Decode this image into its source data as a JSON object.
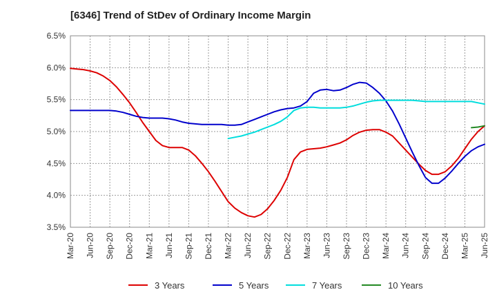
{
  "chart_data": {
    "type": "line",
    "title": "[6346]  Trend of StDev of Ordinary Income Margin",
    "xlabel": "",
    "ylabel": "",
    "y_tick_labels": [
      "3.5%",
      "4.0%",
      "4.5%",
      "5.0%",
      "5.5%",
      "6.0%",
      "6.5%"
    ],
    "x_tick_labels": [
      "Mar-20",
      "Jun-20",
      "Sep-20",
      "Dec-20",
      "Mar-21",
      "Jun-21",
      "Sep-21",
      "Dec-21",
      "Mar-22",
      "Jun-22",
      "Sep-22",
      "Dec-22",
      "Mar-23",
      "Jun-23",
      "Sep-23",
      "Dec-23",
      "Mar-24",
      "Jun-24",
      "Sep-24",
      "Dec-24",
      "Mar-25",
      "Jun-25"
    ],
    "ylim": [
      3.5,
      6.5
    ],
    "y_unit": "%",
    "grid": true,
    "legend_position": "bottom",
    "series": [
      {
        "name": "3 Years",
        "color": "#dd0000",
        "points": [
          [
            "Mar-20",
            5.99
          ],
          [
            "Apr-20",
            5.98
          ],
          [
            "May-20",
            5.97
          ],
          [
            "Jun-20",
            5.95
          ],
          [
            "Jul-20",
            5.92
          ],
          [
            "Aug-20",
            5.87
          ],
          [
            "Sep-20",
            5.8
          ],
          [
            "Oct-20",
            5.7
          ],
          [
            "Nov-20",
            5.58
          ],
          [
            "Dec-20",
            5.45
          ],
          [
            "Jan-21",
            5.3
          ],
          [
            "Feb-21",
            5.14
          ],
          [
            "Mar-21",
            5.0
          ],
          [
            "Apr-21",
            4.86
          ],
          [
            "May-21",
            4.78
          ],
          [
            "Jun-21",
            4.75
          ],
          [
            "Jul-21",
            4.75
          ],
          [
            "Aug-21",
            4.75
          ],
          [
            "Sep-21",
            4.71
          ],
          [
            "Oct-21",
            4.62
          ],
          [
            "Nov-21",
            4.5
          ],
          [
            "Dec-21",
            4.37
          ],
          [
            "Jan-22",
            4.22
          ],
          [
            "Feb-22",
            4.06
          ],
          [
            "Mar-22",
            3.9
          ],
          [
            "Apr-22",
            3.8
          ],
          [
            "May-22",
            3.73
          ],
          [
            "Jun-22",
            3.68
          ],
          [
            "Jul-22",
            3.66
          ],
          [
            "Aug-22",
            3.7
          ],
          [
            "Sep-22",
            3.79
          ],
          [
            "Oct-22",
            3.92
          ],
          [
            "Nov-22",
            4.08
          ],
          [
            "Dec-22",
            4.28
          ],
          [
            "Jan-23",
            4.56
          ],
          [
            "Feb-23",
            4.68
          ],
          [
            "Mar-23",
            4.72
          ],
          [
            "Apr-23",
            4.73
          ],
          [
            "May-23",
            4.74
          ],
          [
            "Jun-23",
            4.76
          ],
          [
            "Jul-23",
            4.79
          ],
          [
            "Aug-23",
            4.82
          ],
          [
            "Sep-23",
            4.87
          ],
          [
            "Oct-23",
            4.94
          ],
          [
            "Nov-23",
            4.99
          ],
          [
            "Dec-23",
            5.02
          ],
          [
            "Jan-24",
            5.03
          ],
          [
            "Feb-24",
            5.03
          ],
          [
            "Mar-24",
            4.99
          ],
          [
            "Apr-24",
            4.93
          ],
          [
            "May-24",
            4.82
          ],
          [
            "Jun-24",
            4.71
          ],
          [
            "Jul-24",
            4.6
          ],
          [
            "Aug-24",
            4.49
          ],
          [
            "Sep-24",
            4.39
          ],
          [
            "Oct-24",
            4.33
          ],
          [
            "Nov-24",
            4.33
          ],
          [
            "Dec-24",
            4.37
          ],
          [
            "Jan-25",
            4.46
          ],
          [
            "Feb-25",
            4.58
          ],
          [
            "Mar-25",
            4.73
          ],
          [
            "Apr-25",
            4.88
          ],
          [
            "May-25",
            5.0
          ],
          [
            "Jun-25",
            5.09
          ]
        ]
      },
      {
        "name": "5 Years",
        "color": "#0000cc",
        "points": [
          [
            "Mar-20",
            5.33
          ],
          [
            "Apr-20",
            5.33
          ],
          [
            "May-20",
            5.33
          ],
          [
            "Jun-20",
            5.33
          ],
          [
            "Jul-20",
            5.33
          ],
          [
            "Aug-20",
            5.33
          ],
          [
            "Sep-20",
            5.33
          ],
          [
            "Oct-20",
            5.32
          ],
          [
            "Nov-20",
            5.3
          ],
          [
            "Dec-20",
            5.27
          ],
          [
            "Jan-21",
            5.24
          ],
          [
            "Feb-21",
            5.22
          ],
          [
            "Mar-21",
            5.21
          ],
          [
            "Apr-21",
            5.21
          ],
          [
            "May-21",
            5.21
          ],
          [
            "Jun-21",
            5.2
          ],
          [
            "Jul-21",
            5.18
          ],
          [
            "Aug-21",
            5.15
          ],
          [
            "Sep-21",
            5.13
          ],
          [
            "Oct-21",
            5.12
          ],
          [
            "Nov-21",
            5.11
          ],
          [
            "Dec-21",
            5.11
          ],
          [
            "Jan-22",
            5.11
          ],
          [
            "Feb-22",
            5.11
          ],
          [
            "Mar-22",
            5.1
          ],
          [
            "Apr-22",
            5.1
          ],
          [
            "May-22",
            5.11
          ],
          [
            "Jun-22",
            5.15
          ],
          [
            "Jul-22",
            5.19
          ],
          [
            "Aug-22",
            5.23
          ],
          [
            "Sep-22",
            5.27
          ],
          [
            "Oct-22",
            5.31
          ],
          [
            "Nov-22",
            5.34
          ],
          [
            "Dec-22",
            5.36
          ],
          [
            "Jan-23",
            5.37
          ],
          [
            "Feb-23",
            5.4
          ],
          [
            "Mar-23",
            5.47
          ],
          [
            "Apr-23",
            5.6
          ],
          [
            "May-23",
            5.65
          ],
          [
            "Jun-23",
            5.66
          ],
          [
            "Jul-23",
            5.64
          ],
          [
            "Aug-23",
            5.65
          ],
          [
            "Sep-23",
            5.69
          ],
          [
            "Oct-23",
            5.74
          ],
          [
            "Nov-23",
            5.77
          ],
          [
            "Dec-23",
            5.76
          ],
          [
            "Jan-24",
            5.69
          ],
          [
            "Feb-24",
            5.6
          ],
          [
            "Mar-24",
            5.48
          ],
          [
            "Apr-24",
            5.32
          ],
          [
            "May-24",
            5.12
          ],
          [
            "Jun-24",
            4.9
          ],
          [
            "Jul-24",
            4.68
          ],
          [
            "Aug-24",
            4.47
          ],
          [
            "Sep-24",
            4.28
          ],
          [
            "Oct-24",
            4.19
          ],
          [
            "Nov-24",
            4.19
          ],
          [
            "Dec-24",
            4.27
          ],
          [
            "Jan-25",
            4.38
          ],
          [
            "Feb-25",
            4.5
          ],
          [
            "Mar-25",
            4.61
          ],
          [
            "Apr-25",
            4.7
          ],
          [
            "May-25",
            4.76
          ],
          [
            "Jun-25",
            4.8
          ]
        ]
      },
      {
        "name": "7 Years",
        "color": "#00dddd",
        "points": [
          [
            "Mar-22",
            4.89
          ],
          [
            "Apr-22",
            4.91
          ],
          [
            "May-22",
            4.93
          ],
          [
            "Jun-22",
            4.96
          ],
          [
            "Jul-22",
            4.99
          ],
          [
            "Aug-22",
            5.03
          ],
          [
            "Sep-22",
            5.07
          ],
          [
            "Oct-22",
            5.11
          ],
          [
            "Nov-22",
            5.16
          ],
          [
            "Dec-22",
            5.23
          ],
          [
            "Jan-23",
            5.33
          ],
          [
            "Feb-23",
            5.37
          ],
          [
            "Mar-23",
            5.38
          ],
          [
            "Apr-23",
            5.38
          ],
          [
            "May-23",
            5.37
          ],
          [
            "Jun-23",
            5.37
          ],
          [
            "Jul-23",
            5.37
          ],
          [
            "Aug-23",
            5.37
          ],
          [
            "Sep-23",
            5.38
          ],
          [
            "Oct-23",
            5.4
          ],
          [
            "Nov-23",
            5.43
          ],
          [
            "Dec-23",
            5.46
          ],
          [
            "Jan-24",
            5.48
          ],
          [
            "Feb-24",
            5.49
          ],
          [
            "Mar-24",
            5.49
          ],
          [
            "Apr-24",
            5.49
          ],
          [
            "May-24",
            5.49
          ],
          [
            "Jun-24",
            5.49
          ],
          [
            "Jul-24",
            5.49
          ],
          [
            "Aug-24",
            5.48
          ],
          [
            "Sep-24",
            5.47
          ],
          [
            "Oct-24",
            5.47
          ],
          [
            "Nov-24",
            5.47
          ],
          [
            "Dec-24",
            5.47
          ],
          [
            "Jan-25",
            5.47
          ],
          [
            "Feb-25",
            5.47
          ],
          [
            "Mar-25",
            5.47
          ],
          [
            "Apr-25",
            5.47
          ],
          [
            "May-25",
            5.45
          ],
          [
            "Jun-25",
            5.43
          ]
        ]
      },
      {
        "name": "10 Years",
        "color": "#228822",
        "points": [
          [
            "Apr-25",
            5.06
          ],
          [
            "May-25",
            5.07
          ],
          [
            "Jun-25",
            5.09
          ]
        ]
      }
    ]
  }
}
